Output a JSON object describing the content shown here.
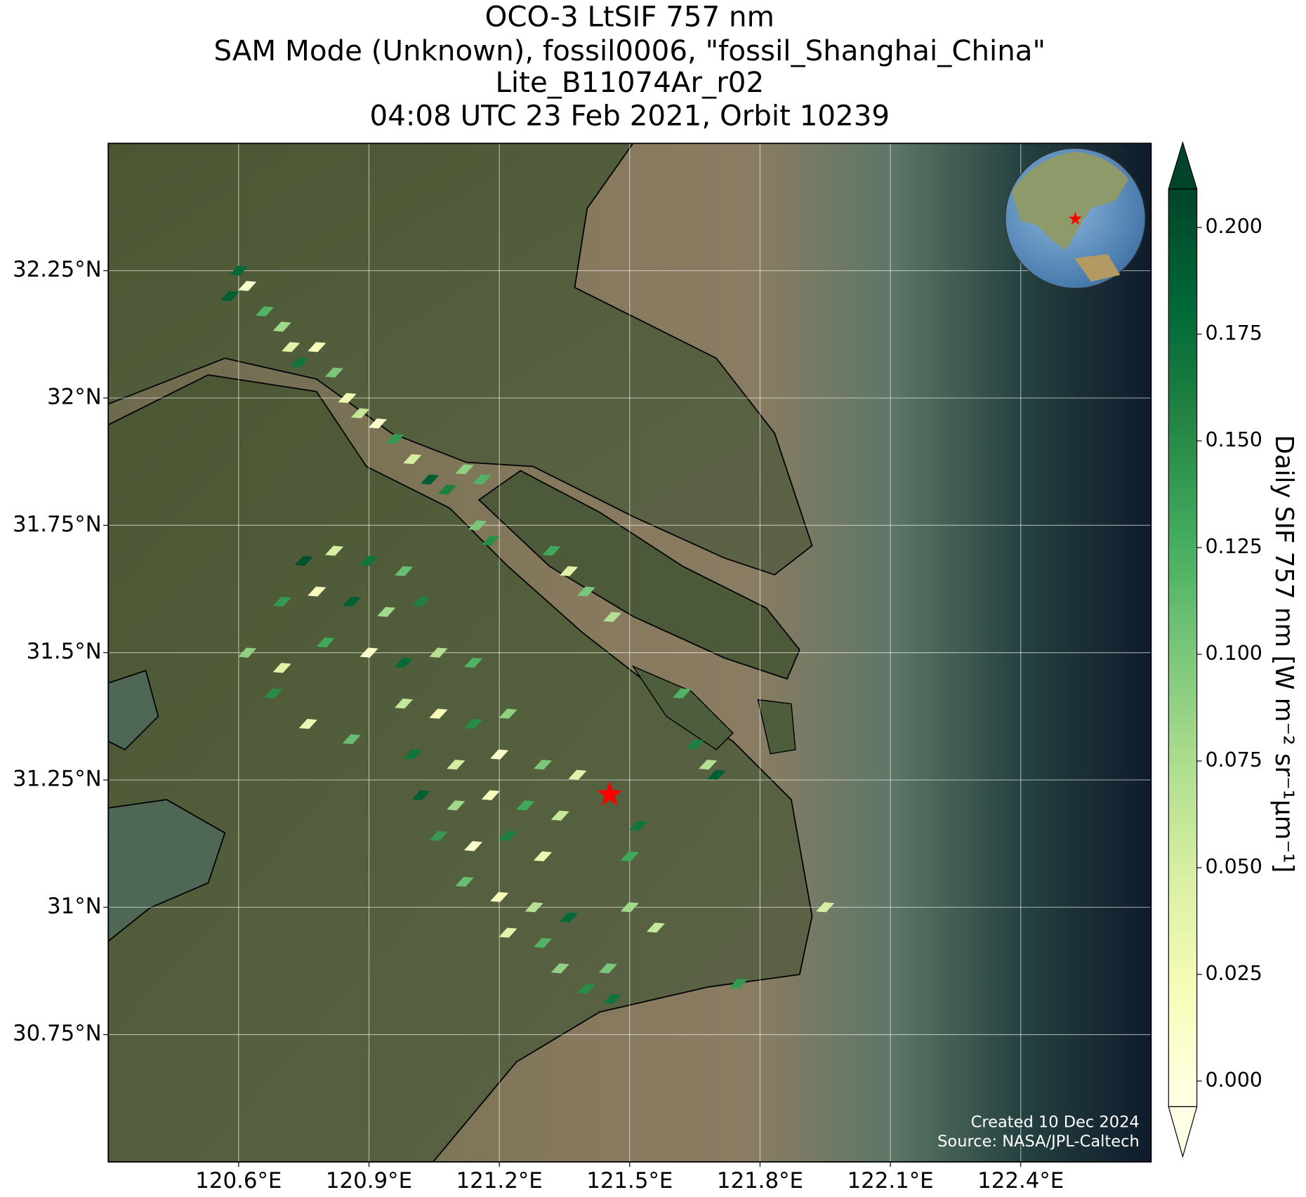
{
  "chart_data": {
    "type": "map",
    "title": [
      "OCO-3 LtSIF 757 nm",
      "SAM Mode (Unknown), fossil0006, \"fossil_Shanghai_China\"",
      "Lite_B11074Ar_r02",
      "04:08 UTC 23 Feb 2021, Orbit 10239"
    ],
    "xlim": [
      120.3,
      122.7
    ],
    "ylim": [
      30.5,
      32.5
    ],
    "xticks": [
      {
        "value": 120.6,
        "label": "120.6°E"
      },
      {
        "value": 120.9,
        "label": "120.9°E"
      },
      {
        "value": 121.2,
        "label": "121.2°E"
      },
      {
        "value": 121.5,
        "label": "121.5°E"
      },
      {
        "value": 121.8,
        "label": "121.8°E"
      },
      {
        "value": 122.1,
        "label": "122.1°E"
      },
      {
        "value": 122.4,
        "label": "122.4°E"
      }
    ],
    "yticks": [
      {
        "value": 30.75,
        "label": "30.75°N"
      },
      {
        "value": 31,
        "label": "31°N"
      },
      {
        "value": 31.25,
        "label": "31.25°N"
      },
      {
        "value": 31.5,
        "label": "31.5°N"
      },
      {
        "value": 31.75,
        "label": "31.75°N"
      },
      {
        "value": 32,
        "label": "32°N"
      },
      {
        "value": 32.25,
        "label": "32.25°N"
      }
    ],
    "grid": true,
    "colorbar": {
      "label": "Daily SIF 757 nm [W m⁻² sr⁻¹μm⁻¹]",
      "colormap": "YlGn",
      "extend": "both",
      "clim": [
        -0.006,
        0.209
      ],
      "ticks": [
        {
          "value": 0,
          "label": "0.000"
        },
        {
          "value": 0.025,
          "label": "0.025"
        },
        {
          "value": 0.05,
          "label": "0.050"
        },
        {
          "value": 0.075,
          "label": "0.075"
        },
        {
          "value": 0.1,
          "label": "0.100"
        },
        {
          "value": 0.125,
          "label": "0.125"
        },
        {
          "value": 0.15,
          "label": "0.150"
        },
        {
          "value": 0.175,
          "label": "0.175"
        },
        {
          "value": 0.2,
          "label": "0.200"
        }
      ]
    },
    "soundings": {
      "lon": [
        120.6,
        120.62,
        120.58,
        120.66,
        120.7,
        120.72,
        120.74,
        120.78,
        120.82,
        120.85,
        120.88,
        120.92,
        120.96,
        121.0,
        121.04,
        121.08,
        121.12,
        121.16,
        121.15,
        121.18,
        121.32,
        121.36,
        121.4,
        121.46,
        120.75,
        120.82,
        120.9,
        120.98,
        120.7,
        120.78,
        120.86,
        120.94,
        121.02,
        120.62,
        120.7,
        120.8,
        120.9,
        120.98,
        121.06,
        121.14,
        120.68,
        120.76,
        120.86,
        120.98,
        121.06,
        121.14,
        121.22,
        121.0,
        121.1,
        121.2,
        121.3,
        121.38,
        121.02,
        121.1,
        121.18,
        121.26,
        121.34,
        121.06,
        121.14,
        121.22,
        121.3,
        121.12,
        121.2,
        121.28,
        121.36,
        121.22,
        121.3,
        121.34,
        121.4,
        121.45,
        121.5,
        121.5,
        121.52,
        121.56,
        121.46,
        121.65,
        121.68,
        121.7,
        121.62,
        121.95,
        121.75
      ],
      "lat": [
        32.25,
        32.22,
        32.2,
        32.17,
        32.14,
        32.1,
        32.07,
        32.1,
        32.05,
        32.0,
        31.97,
        31.95,
        31.92,
        31.88,
        31.84,
        31.82,
        31.86,
        31.84,
        31.75,
        31.72,
        31.7,
        31.66,
        31.62,
        31.57,
        31.68,
        31.7,
        31.68,
        31.66,
        31.6,
        31.62,
        31.6,
        31.58,
        31.6,
        31.5,
        31.47,
        31.52,
        31.5,
        31.48,
        31.5,
        31.48,
        31.42,
        31.36,
        31.33,
        31.4,
        31.38,
        31.36,
        31.38,
        31.3,
        31.28,
        31.3,
        31.28,
        31.26,
        31.22,
        31.2,
        31.22,
        31.2,
        31.18,
        31.14,
        31.12,
        31.14,
        31.1,
        31.05,
        31.02,
        31.0,
        30.98,
        30.95,
        30.93,
        30.88,
        30.84,
        30.88,
        31.0,
        31.1,
        31.16,
        30.96,
        30.82,
        31.32,
        31.28,
        31.26,
        31.42,
        31.0,
        30.85
      ],
      "values": [
        0.18,
        0.01,
        0.19,
        0.12,
        0.08,
        0.04,
        0.17,
        0.02,
        0.1,
        0.03,
        0.06,
        0.01,
        0.14,
        0.05,
        0.19,
        0.16,
        0.09,
        0.12,
        0.1,
        0.15,
        0.13,
        0.04,
        0.1,
        0.07,
        0.2,
        0.05,
        0.17,
        0.11,
        0.14,
        0.02,
        0.19,
        0.08,
        0.16,
        0.09,
        0.04,
        0.13,
        0.01,
        0.18,
        0.07,
        0.12,
        0.15,
        0.03,
        0.11,
        0.06,
        0.02,
        0.15,
        0.09,
        0.17,
        0.05,
        0.01,
        0.1,
        0.04,
        0.19,
        0.08,
        0.02,
        0.13,
        0.06,
        0.14,
        0.01,
        0.16,
        0.03,
        0.11,
        0.02,
        0.07,
        0.18,
        0.04,
        0.12,
        0.09,
        0.15,
        0.1,
        0.08,
        0.13,
        0.17,
        0.06,
        0.17,
        0.16,
        0.07,
        0.19,
        0.12,
        0.05,
        0.14
      ]
    },
    "target": {
      "lon": 121.454,
      "lat": 31.221,
      "color": "red"
    },
    "credits": [
      "Created 10 Dec 2024",
      "Source: NASA/JPL-Caltech"
    ]
  }
}
